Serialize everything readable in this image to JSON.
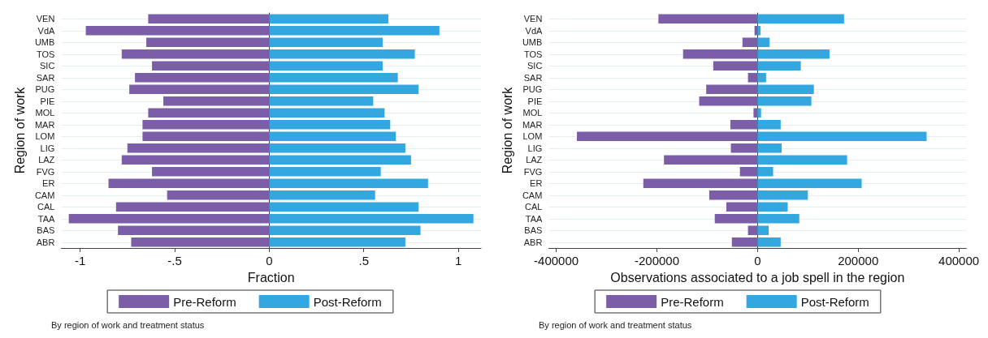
{
  "chart_data": [
    {
      "type": "bar",
      "orientation": "horizontal",
      "stacked": true,
      "xlabel": "Fraction",
      "ylabel": "Region of work",
      "categories": [
        "VEN",
        "VdA",
        "UMB",
        "TOS",
        "SIC",
        "SAR",
        "PUG",
        "PIE",
        "MOL",
        "MAR",
        "LOM",
        "LIG",
        "LAZ",
        "FVG",
        "ER",
        "CAM",
        "CAL",
        "TAA",
        "BAS",
        "ABR"
      ],
      "series": [
        {
          "name": "Pre-Reform",
          "color": "#7b5ea7",
          "values": [
            -0.64,
            -0.97,
            -0.65,
            -0.78,
            -0.62,
            -0.71,
            -0.74,
            -0.56,
            -0.64,
            -0.67,
            -0.67,
            -0.75,
            -0.78,
            -0.62,
            -0.85,
            -0.54,
            -0.81,
            -1.06,
            -0.8,
            -0.73
          ]
        },
        {
          "name": "Post-Reform",
          "color": "#33a8e0",
          "values": [
            0.63,
            0.9,
            0.6,
            0.77,
            0.6,
            0.68,
            0.79,
            0.55,
            0.61,
            0.64,
            0.67,
            0.72,
            0.75,
            0.59,
            0.84,
            0.56,
            0.79,
            1.08,
            0.8,
            0.72
          ]
        }
      ],
      "xlim": [
        -1.1,
        1.12
      ],
      "xticks": [
        -1,
        {
          "value": -0.5,
          "label": "-.5"
        },
        0,
        {
          "value": 0.5,
          "label": ".5"
        },
        1
      ],
      "grid": "y",
      "legend": "bottom",
      "annotations": [
        "By region of work and treatment status"
      ]
    },
    {
      "type": "bar",
      "orientation": "horizontal",
      "stacked": true,
      "xlabel": "Observations associated to a job spell in the region",
      "ylabel": "Region of work",
      "categories": [
        "VEN",
        "VdA",
        "UMB",
        "TOS",
        "SIC",
        "SAR",
        "PUG",
        "PIE",
        "MOL",
        "MAR",
        "LOM",
        "LIG",
        "LAZ",
        "FVG",
        "ER",
        "CAM",
        "CAL",
        "TAA",
        "BAS",
        "ABR"
      ],
      "series": [
        {
          "name": "Pre-Reform",
          "color": "#7b5ea7",
          "values": [
            -197000,
            -6000,
            -30000,
            -148000,
            -88000,
            -19000,
            -102000,
            -116000,
            -8000,
            -54000,
            -359000,
            -53000,
            -186000,
            -35000,
            -227000,
            -96000,
            -62000,
            -85000,
            -19000,
            -51000
          ]
        },
        {
          "name": "Post-Reform",
          "color": "#33a8e0",
          "values": [
            172000,
            6000,
            24000,
            143000,
            86000,
            17000,
            112000,
            107000,
            7000,
            46000,
            336000,
            48000,
            178000,
            31000,
            207000,
            100000,
            60000,
            83000,
            22000,
            46000
          ]
        }
      ],
      "xlim": [
        -415000,
        415000
      ],
      "xticks": [
        -400000,
        -200000,
        0,
        200000,
        400000
      ],
      "grid": "y",
      "legend": "bottom",
      "annotations": [
        "By region of work and treatment status"
      ]
    }
  ]
}
